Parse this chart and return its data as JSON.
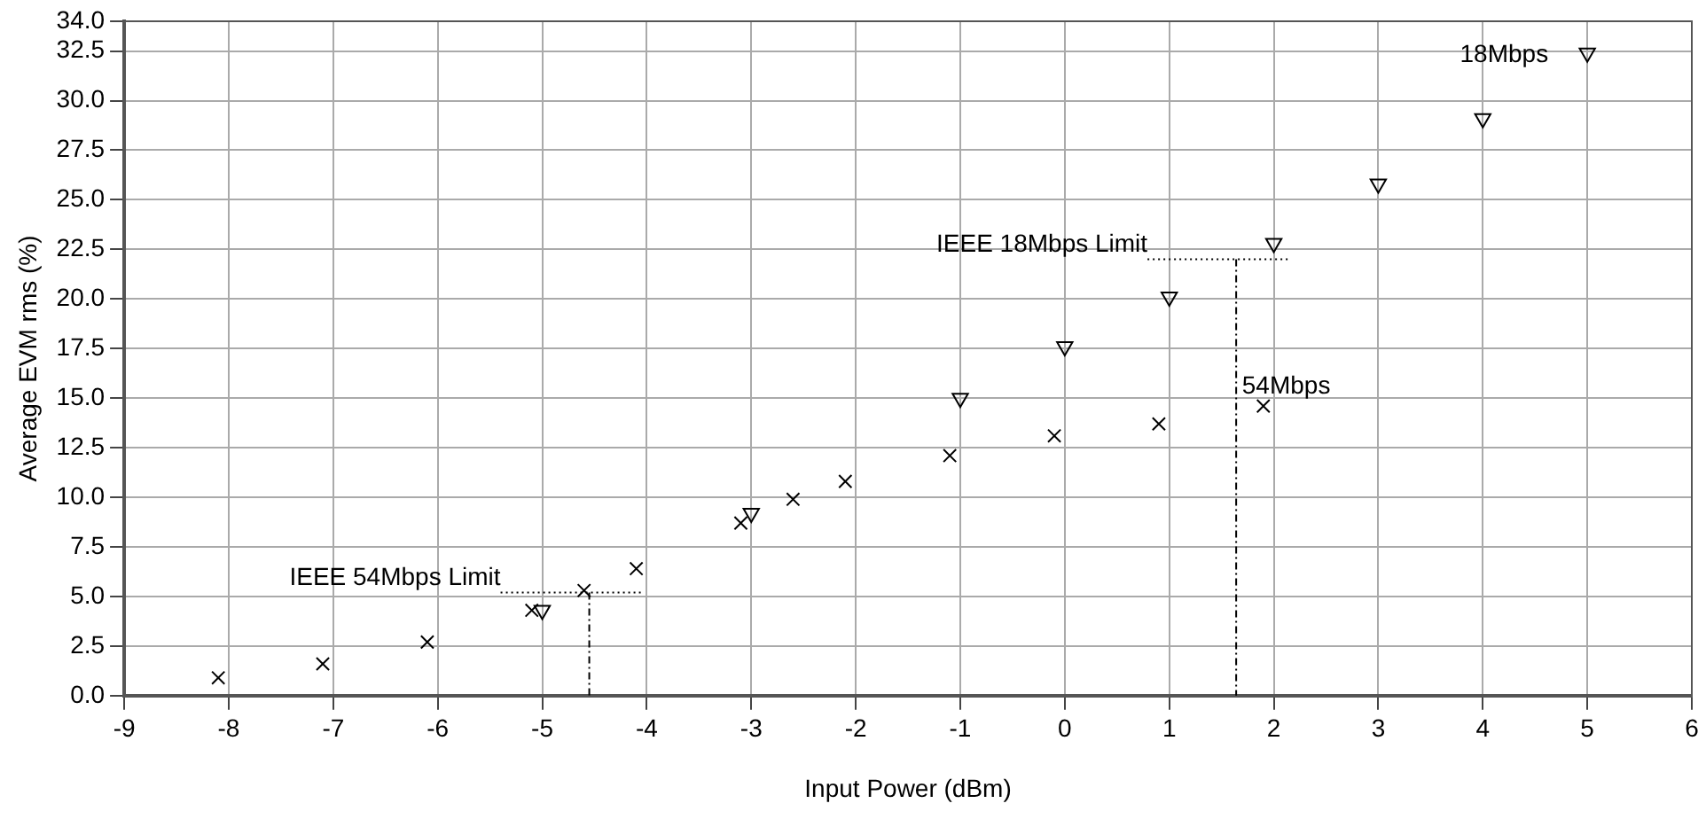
{
  "chart_data": {
    "type": "scatter",
    "xlabel": "Input Power (dBm)",
    "ylabel": "Average EVM rms (%)",
    "xlim": [
      -9,
      6
    ],
    "xticks": [
      -9,
      -8,
      -7,
      -6,
      -5,
      -4,
      -3,
      -2,
      -1,
      0,
      1,
      2,
      3,
      4,
      5,
      6
    ],
    "ylim": [
      0,
      34
    ],
    "yticks": [
      {
        "value": 0,
        "label": "0.0"
      },
      {
        "value": 2.5,
        "label": "2.5"
      },
      {
        "value": 5,
        "label": "5.0"
      },
      {
        "value": 7.5,
        "label": "7.5"
      },
      {
        "value": 10,
        "label": "10.0"
      },
      {
        "value": 12.5,
        "label": "12.5"
      },
      {
        "value": 15,
        "label": "15.0"
      },
      {
        "value": 17.5,
        "label": "17.5"
      },
      {
        "value": 20,
        "label": "20.0"
      },
      {
        "value": 22.5,
        "label": "22.5"
      },
      {
        "value": 25,
        "label": "25.0"
      },
      {
        "value": 27.5,
        "label": "27.5"
      },
      {
        "value": 30,
        "label": "30.0"
      },
      {
        "value": 32.5,
        "label": "32.5"
      },
      {
        "value": 34,
        "label": "34.0"
      }
    ],
    "grid": true,
    "legend": false,
    "series": [
      {
        "name": "54Mbps",
        "color": "#000000",
        "marker": "cross",
        "x": [
          -8.1,
          -7.1,
          -6.1,
          -5.1,
          -4.6,
          -4.1,
          -3.1,
          -2.6,
          -2.1,
          -1.1,
          -0.1,
          0.9,
          1.9
        ],
        "values": [
          0.9,
          1.6,
          2.7,
          4.3,
          5.3,
          6.4,
          8.7,
          9.9,
          10.8,
          12.1,
          13.1,
          13.7,
          14.6
        ]
      },
      {
        "name": "18Mbps",
        "color": "#000000",
        "marker": "triangle",
        "x": [
          -5,
          -3,
          -1,
          0,
          1,
          2,
          3,
          4,
          5
        ],
        "values": [
          4.3,
          9.2,
          15.0,
          17.6,
          20.1,
          22.8,
          25.8,
          29.1,
          32.4
        ]
      }
    ],
    "ref_lines": [
      {
        "axis": "y",
        "value": 5.2,
        "label": "IEEE 54Mbps Limit",
        "line_style": "dotted"
      },
      {
        "axis": "x",
        "value": -4.55,
        "line_style": "dashed"
      },
      {
        "axis": "y",
        "value": 22.0,
        "label": "IEEE 18Mbps Limit",
        "line_style": "dotted"
      },
      {
        "axis": "x",
        "value": 1.64,
        "line_style": "dashed"
      }
    ]
  }
}
